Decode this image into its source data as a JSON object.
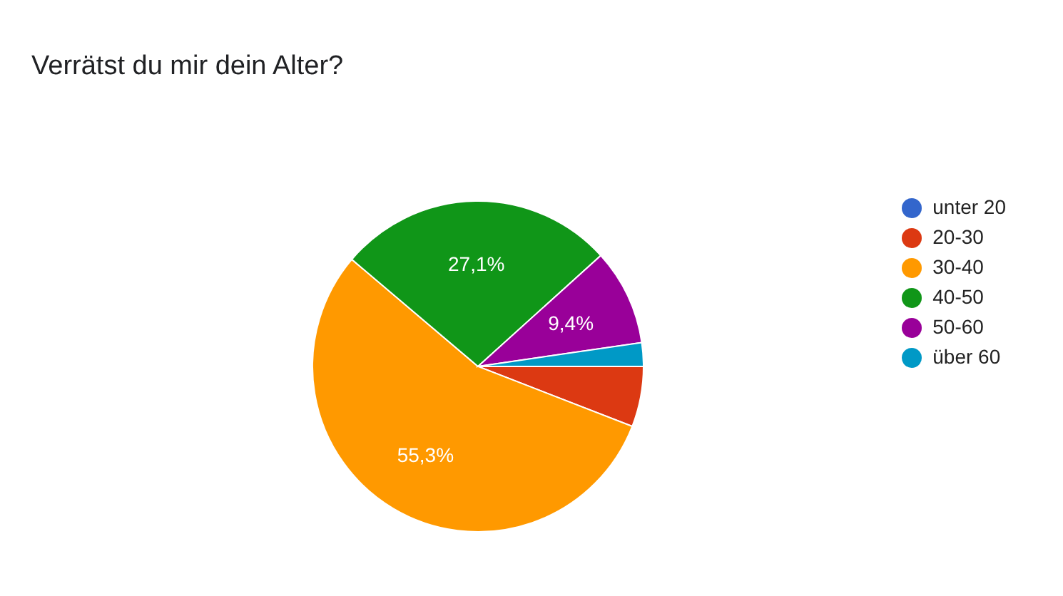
{
  "chart_data": {
    "type": "pie",
    "title": "Verrätst du mir dein Alter?",
    "categories": [
      "unter 20",
      "20-30",
      "30-40",
      "40-50",
      "50-60",
      "über 60"
    ],
    "values": [
      0,
      5.9,
      55.3,
      27.1,
      9.4,
      2.3
    ],
    "colors": [
      "#3366cc",
      "#dc3912",
      "#ff9900",
      "#109618",
      "#990099",
      "#0099c6"
    ],
    "value_labels": [
      null,
      null,
      "55,3%",
      "27,1%",
      "9,4%",
      null
    ],
    "legend": "right"
  }
}
